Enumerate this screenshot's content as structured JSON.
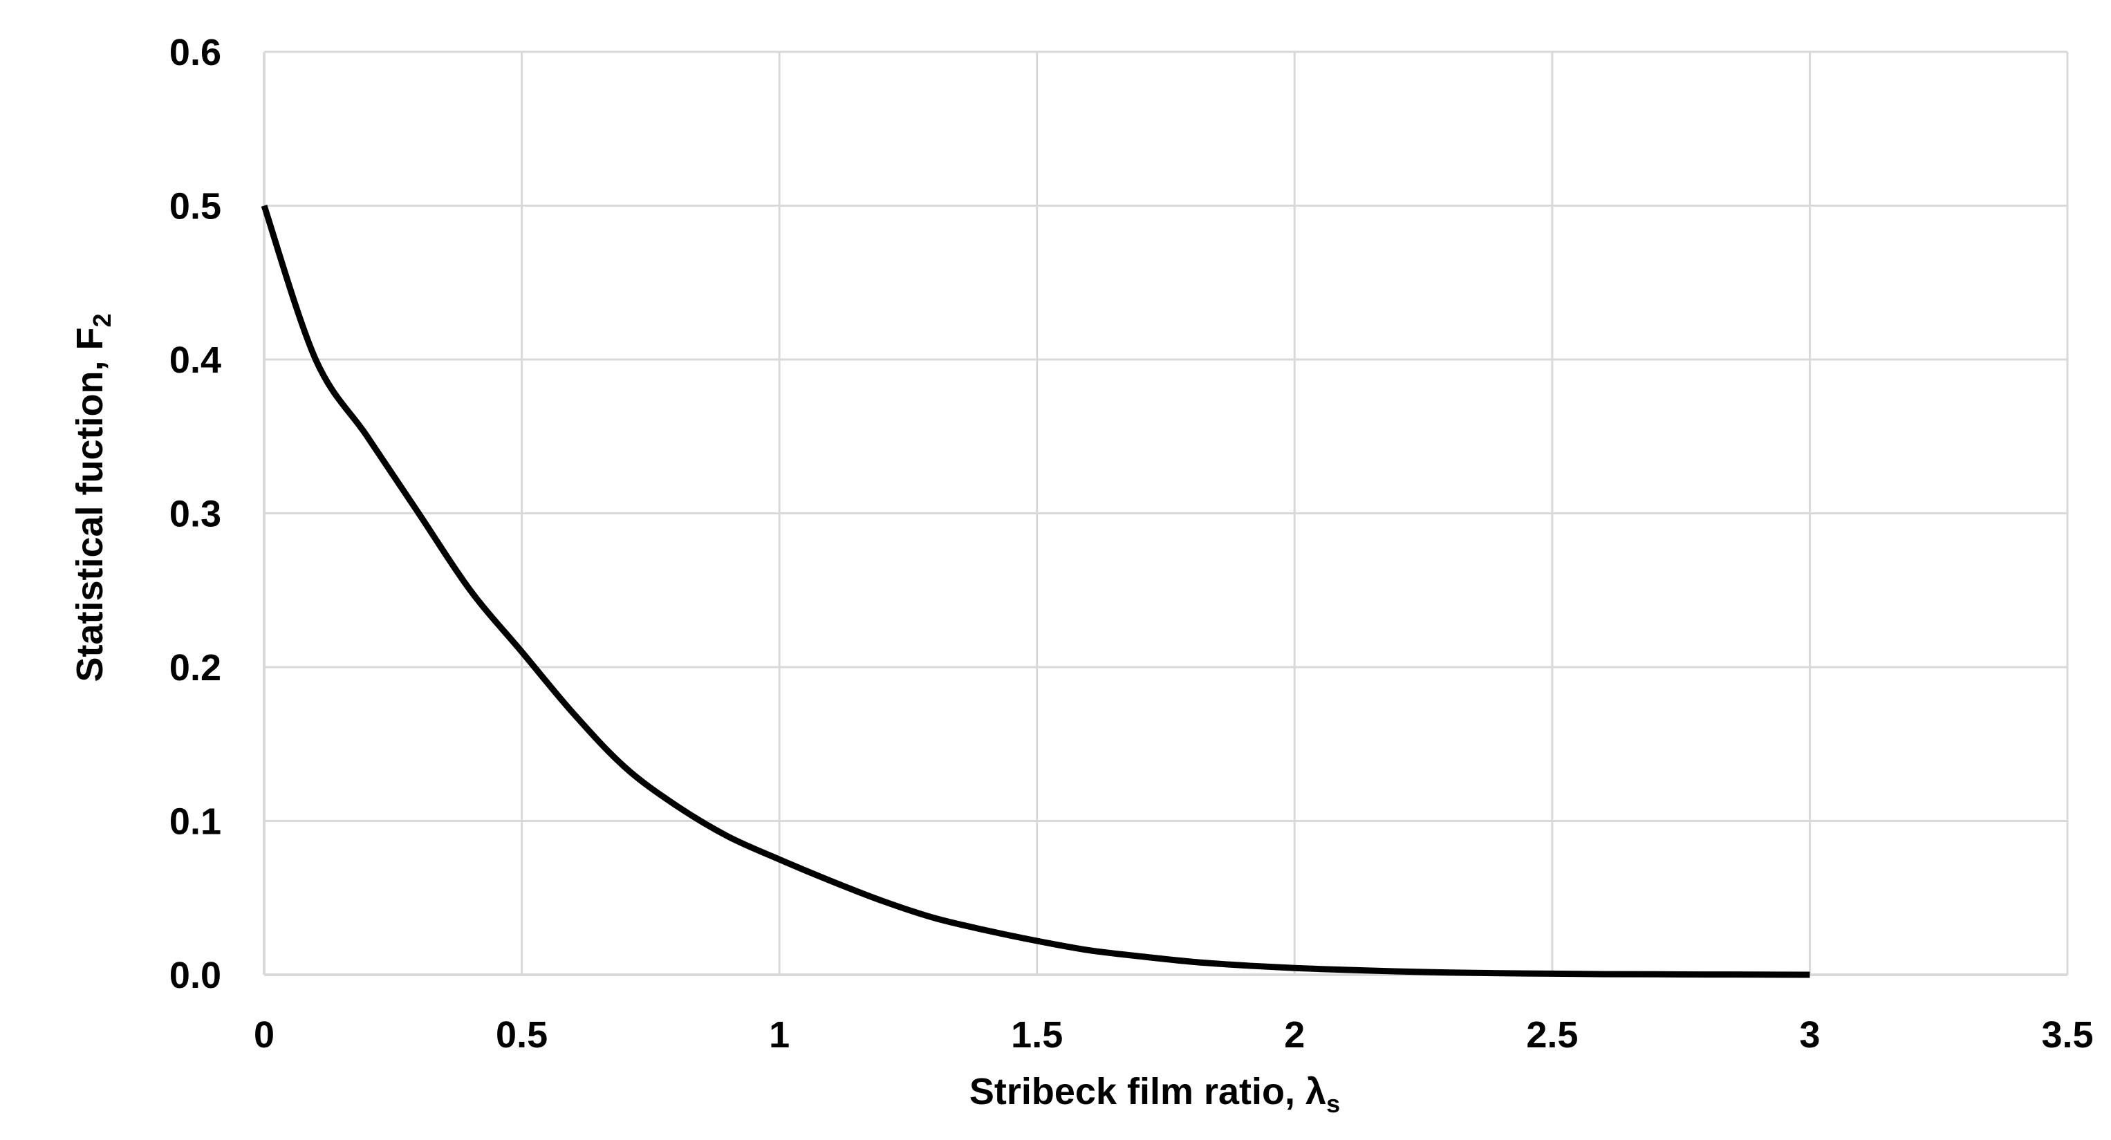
{
  "chart_data": {
    "type": "line",
    "title": "",
    "xlabel": "Stribeck film ratio, λ",
    "xlabel_subscript": "s",
    "ylabel": "Statistical fuction, F",
    "ylabel_subscript": "2",
    "xlim": [
      0,
      3.5
    ],
    "ylim": [
      0,
      0.6
    ],
    "x_ticks": [
      "0",
      "0.5",
      "1",
      "1.5",
      "2",
      "2.5",
      "3",
      "3.5"
    ],
    "y_ticks": [
      "0.0",
      "0.1",
      "0.2",
      "0.3",
      "0.4",
      "0.5",
      "0.6"
    ],
    "grid": true,
    "legend": "none",
    "colors": {
      "line": "#000000",
      "grid": "#d9d9d9",
      "background": "#ffffff"
    },
    "series": [
      {
        "x": [
          0,
          0.1,
          0.2,
          0.3,
          0.4,
          0.5,
          0.6,
          0.7,
          0.8,
          0.9,
          1.0,
          1.1,
          1.2,
          1.3,
          1.4,
          1.5,
          1.6,
          1.7,
          1.8,
          1.9,
          2.0,
          2.1,
          2.2,
          2.3,
          2.4,
          2.5,
          2.6,
          2.7,
          2.8,
          2.9,
          3.0
        ],
        "values": [
          0.5,
          0.4,
          0.35,
          0.3,
          0.25,
          0.21,
          0.17,
          0.135,
          0.11,
          0.09,
          0.075,
          0.061,
          0.048,
          0.037,
          0.029,
          0.022,
          0.016,
          0.012,
          0.0085,
          0.0061,
          0.0044,
          0.0032,
          0.0022,
          0.0015,
          0.001,
          0.0007,
          0.0004,
          0.0003,
          0.0002,
          0.0001,
          0.0
        ]
      }
    ]
  }
}
